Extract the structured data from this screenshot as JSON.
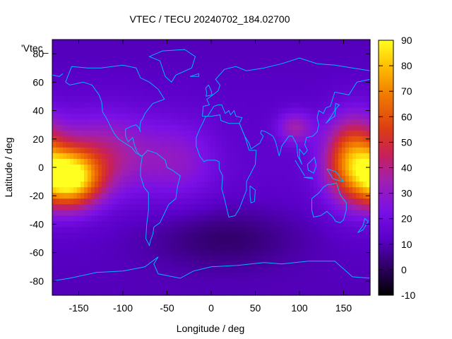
{
  "chart_data": {
    "type": "heatmap",
    "title": "VTEC / TECU 20240702_184.02700",
    "xlabel": "Longitude / deg",
    "ylabel": "Latitude / deg",
    "xlim": [
      -180,
      180
    ],
    "ylim": [
      -90,
      90
    ],
    "xticks": [
      -150,
      -100,
      -50,
      0,
      50,
      100,
      150
    ],
    "yticks": [
      -80,
      -60,
      -40,
      -20,
      0,
      20,
      40,
      60,
      80
    ],
    "colorbar": {
      "min": -10,
      "max": 90,
      "ticks": [
        -10,
        0,
        10,
        20,
        30,
        40,
        50,
        60,
        70,
        80,
        90
      ],
      "palette": "black-blue-purple-red-orange-yellow"
    },
    "legend": {
      "label": "'Vtec_",
      "position": "top-left"
    },
    "grid": false,
    "peaks": [
      {
        "lon": -160,
        "lat": -8,
        "vtec": 88
      },
      {
        "lon": 160,
        "lat": 5,
        "vtec": 75
      },
      {
        "lon": 95,
        "lat": 28,
        "vtec": 45
      },
      {
        "lon": 15,
        "lat": -50,
        "vtec": 5
      }
    ],
    "coastline_color": "#00b4ff"
  }
}
